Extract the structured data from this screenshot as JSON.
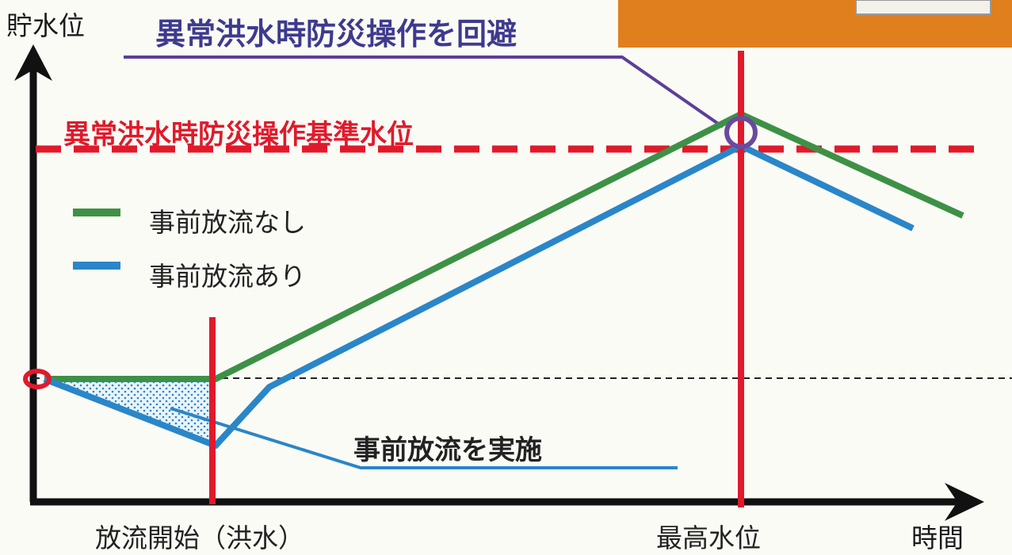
{
  "axes": {
    "y_label": "貯水位",
    "x_label": "時間"
  },
  "callout": {
    "title": "異常洪水時防災操作を回避",
    "circle_color": "#6a4aa0"
  },
  "threshold": {
    "label": "異常洪水時防災操作基準水位",
    "color": "#e01a2b"
  },
  "legend": {
    "no_release": {
      "label": "事前放流なし",
      "color": "#3d9146"
    },
    "with_release": {
      "label": "事前放流あり",
      "color": "#2a86c8"
    }
  },
  "annotation": {
    "release_label": "事前放流を実施"
  },
  "x_markers": {
    "start": "放流開始（洪水）",
    "peak": "最高水位"
  },
  "colors": {
    "orange_band": "#e07f1e",
    "marker_red": "#e01a2b",
    "axis": "#111111"
  }
}
